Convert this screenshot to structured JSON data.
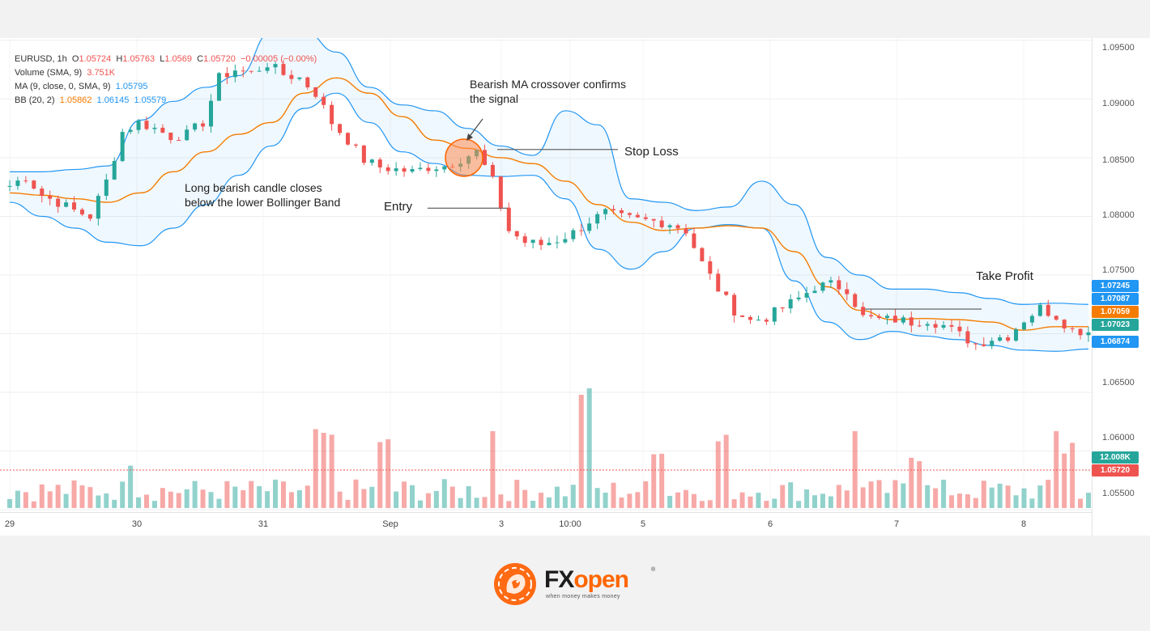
{
  "legend": {
    "row1": {
      "symbol": "EURUSD, 1h",
      "o_label": "O",
      "o": "1.05724",
      "h_label": "H",
      "h": "1.05763",
      "l_label": "L",
      "l": "1.0569",
      "c_label": "C",
      "c": "1.05720",
      "chg": "−0.00005 (−0.00%)"
    },
    "row2": {
      "label": "Volume (SMA, 9)",
      "value": "3.751K"
    },
    "row3": {
      "label": "MA (9, close, 0, SMA, 9)",
      "value": "1.05795"
    },
    "row4": {
      "label": "BB (20, 2)",
      "v1": "1.05862",
      "v2": "1.06145",
      "v3": "1.05579"
    }
  },
  "annotations": {
    "crossover": [
      "Bearish MA crossover confirms",
      "the signal"
    ],
    "stop_loss": "Stop Loss",
    "bearish_candle": [
      "Long bearish candle closes",
      "below the lower Bollinger Band"
    ],
    "entry": "Entry",
    "take_profit": "Take Profit"
  },
  "price_axis": [
    "1.09500",
    "1.09000",
    "1.08500",
    "1.08000",
    "1.07500",
    "1.06500",
    "1.06000",
    "1.05500"
  ],
  "price_tags": [
    {
      "text": "1.07245",
      "color": "#2196f3"
    },
    {
      "text": "1.07087",
      "color": "#2196f3"
    },
    {
      "text": "1.07059",
      "color": "#f57c00"
    },
    {
      "text": "1.07023",
      "color": "#26a69a"
    },
    {
      "text": "1.06874",
      "color": "#2196f3"
    },
    {
      "text": "12.008K",
      "color": "#26a69a"
    },
    {
      "text": "1.05720",
      "color": "#ef5350"
    }
  ],
  "time_axis": [
    "29",
    "30",
    "31",
    "Sep",
    "3",
    "10:00",
    "5",
    "6",
    "7",
    "8"
  ],
  "brand": {
    "name_part1": "FX",
    "name_part2": "open",
    "tagline": "when money makes money",
    "reg": "®"
  },
  "colors": {
    "up": "#26a69a",
    "down": "#ef5350",
    "bb": "#2196f3",
    "ma": "#f57c00"
  },
  "chart_data": {
    "type": "candlestick",
    "symbol": "EURUSD",
    "interval": "1h",
    "ylim": [
      1.0548,
      1.0952
    ],
    "x": [
      "29",
      "30",
      "31",
      "Sep",
      "3",
      "10:00",
      "5",
      "6",
      "7",
      "8"
    ],
    "price_path": [
      [
        0,
        1.0826
      ],
      [
        2,
        1.0834
      ],
      [
        4,
        1.0818
      ],
      [
        6,
        1.0812
      ],
      [
        8,
        1.0805
      ],
      [
        10,
        1.08
      ],
      [
        12,
        1.083
      ],
      [
        14,
        1.0872
      ],
      [
        16,
        1.088
      ],
      [
        18,
        1.0875
      ],
      [
        20,
        1.0868
      ],
      [
        22,
        1.087
      ],
      [
        24,
        1.088
      ],
      [
        26,
        1.0918
      ],
      [
        28,
        1.0925
      ],
      [
        30,
        1.0922
      ],
      [
        32,
        1.093
      ],
      [
        34,
        1.0921
      ],
      [
        36,
        1.0918
      ],
      [
        38,
        1.0905
      ],
      [
        40,
        1.088
      ],
      [
        42,
        1.0865
      ],
      [
        44,
        1.0848
      ],
      [
        46,
        1.0842
      ],
      [
        48,
        1.084
      ],
      [
        50,
        1.0838
      ],
      [
        52,
        1.0842
      ],
      [
        54,
        1.0843
      ],
      [
        56,
        1.0849
      ],
      [
        58,
        1.0855
      ],
      [
        60,
        1.083
      ],
      [
        62,
        1.0788
      ],
      [
        64,
        1.0778
      ],
      [
        66,
        1.0776
      ],
      [
        68,
        1.078
      ],
      [
        70,
        1.0786
      ],
      [
        72,
        1.0796
      ],
      [
        74,
        1.0803
      ],
      [
        76,
        1.0799
      ],
      [
        78,
        1.0797
      ],
      [
        80,
        1.0796
      ],
      [
        82,
        1.0794
      ],
      [
        84,
        1.0788
      ],
      [
        86,
        1.076
      ],
      [
        88,
        1.0738
      ],
      [
        90,
        1.072
      ],
      [
        92,
        1.0711
      ],
      [
        94,
        1.0714
      ],
      [
        96,
        1.0722
      ],
      [
        98,
        1.073
      ],
      [
        100,
        1.074
      ],
      [
        102,
        1.0742
      ],
      [
        104,
        1.0738
      ],
      [
        106,
        1.0714
      ],
      [
        108,
        1.0712
      ],
      [
        110,
        1.0712
      ],
      [
        112,
        1.071
      ],
      [
        114,
        1.0712
      ],
      [
        116,
        1.0707
      ],
      [
        118,
        1.0699
      ],
      [
        120,
        1.0691
      ],
      [
        122,
        1.0696
      ],
      [
        124,
        1.0698
      ],
      [
        126,
        1.0712
      ],
      [
        128,
        1.0722
      ],
      [
        130,
        1.0715
      ],
      [
        132,
        1.0703
      ],
      [
        134,
        1.0702
      ]
    ],
    "bollinger": {
      "upper": [
        1.0838,
        1.0838,
        1.084,
        1.0843,
        1.0882,
        1.0898,
        1.091,
        1.092,
        1.0957,
        1.0958,
        1.094,
        1.091,
        1.0895,
        1.089,
        1.0875,
        1.086,
        1.0852,
        1.089,
        1.0878,
        1.0815,
        1.0812,
        1.0805,
        1.0808,
        1.083,
        1.081,
        1.0765,
        1.075,
        1.0738,
        1.0738,
        1.0735,
        1.073,
        1.0725,
        1.0726,
        1.0725
      ],
      "lower": [
        1.0812,
        1.08,
        1.079,
        1.0778,
        1.0775,
        1.079,
        1.081,
        1.0835,
        1.086,
        1.0892,
        1.0905,
        1.088,
        1.0855,
        1.0845,
        1.0835,
        1.0834,
        1.0835,
        1.0815,
        1.0772,
        1.0755,
        1.077,
        1.079,
        1.0793,
        1.079,
        1.0745,
        1.071,
        1.0695,
        1.0702,
        1.0698,
        1.0695,
        1.069,
        1.0686,
        1.0685,
        1.0687
      ]
    },
    "moving_average": [
      1.082,
      1.0818,
      1.0815,
      1.0812,
      1.082,
      1.0838,
      1.0855,
      1.087,
      1.088,
      1.0905,
      1.0918,
      1.0905,
      1.0885,
      1.0865,
      1.0858,
      1.085,
      1.0845,
      1.083,
      1.081,
      1.0795,
      1.0788,
      1.079,
      1.0792,
      1.079,
      1.077,
      1.074,
      1.072,
      1.0712,
      1.0713,
      1.0712,
      1.071,
      1.0703,
      1.0706,
      1.0706
    ],
    "volume": {
      "last": "12.008K",
      "sma": "3.751K"
    },
    "markers": {
      "stop_loss": 1.0857,
      "entry": 1.0807,
      "take_profit": 1.0721,
      "last_close": 1.0572
    }
  }
}
